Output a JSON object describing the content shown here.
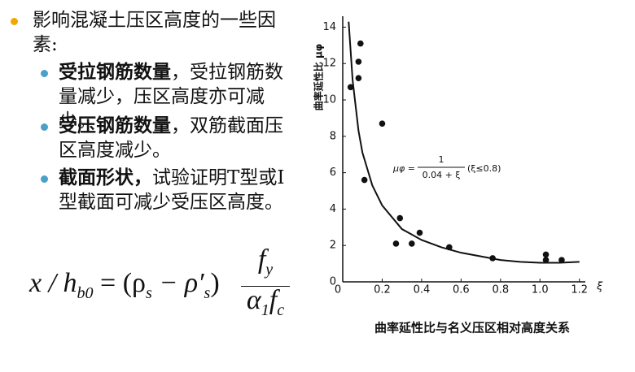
{
  "main_bullet": "影响混凝土压区高度的一些因素:",
  "sub_bullets": [
    {
      "bold": "受拉钢筋数量",
      "text": "，受拉钢筋数量减少，压区高度亦可减少。"
    },
    {
      "bold": "受压钢筋数量",
      "text": "，双筋截面压区高度减少。"
    },
    {
      "bold": "截面形状，",
      "text": "试验证明T型或I型截面可减少受压区高度。"
    }
  ],
  "formula": {
    "lhs": "x / h",
    "lhs_sub": "b0",
    "eq": "= (ρ",
    "s1": "s",
    "minus": " − ρ′",
    "s2": "s",
    "close": ")",
    "num": "f",
    "num_sub": "y",
    "den1": "α",
    "den1_sub": "1",
    "den2": "f",
    "den2_sub": "c"
  },
  "chart_data": {
    "type": "scatter",
    "caption": "曲率延性比与名义压区相对高度关系",
    "y_label": "曲率延性比 μφ",
    "x_label": "ξ",
    "annotation": {
      "lhs": "μφ =",
      "numerator": "1",
      "denominator": "0.04 + ξ",
      "condition": "(ξ≤0.8)"
    },
    "xlim": [
      0,
      1.23
    ],
    "ylim": [
      0,
      14.6
    ],
    "xticks": [
      0,
      0.2,
      0.4,
      0.6,
      0.8,
      {
        "value": 1,
        "label": "1.0"
      },
      1.2
    ],
    "yticks": [
      0,
      2,
      4,
      6,
      8,
      10,
      12,
      14
    ],
    "series": [
      {
        "type": "scatter",
        "color": "#111111",
        "x": [
          0.04,
          0.09,
          0.08,
          0.08,
          0.2,
          0.11,
          0.29,
          0.27,
          0.35,
          0.39,
          0.54,
          0.76,
          1.03,
          1.03,
          1.11
        ],
        "values": [
          10.7,
          13.1,
          12.1,
          11.2,
          8.7,
          5.6,
          3.5,
          2.1,
          2.1,
          2.7,
          1.9,
          1.3,
          1.5,
          1.2,
          1.2
        ]
      },
      {
        "type": "line",
        "color": "#111111",
        "x": [
          0.03,
          0.05,
          0.08,
          0.1,
          0.15,
          0.2,
          0.3,
          0.4,
          0.5,
          0.6,
          0.7,
          0.8,
          0.9,
          1.0,
          1.1,
          1.2
        ],
        "values": [
          14.3,
          11.1,
          8.3,
          7.1,
          5.3,
          4.2,
          2.9,
          2.3,
          1.9,
          1.6,
          1.4,
          1.2,
          1.1,
          1.05,
          1.05,
          1.1
        ]
      }
    ]
  }
}
